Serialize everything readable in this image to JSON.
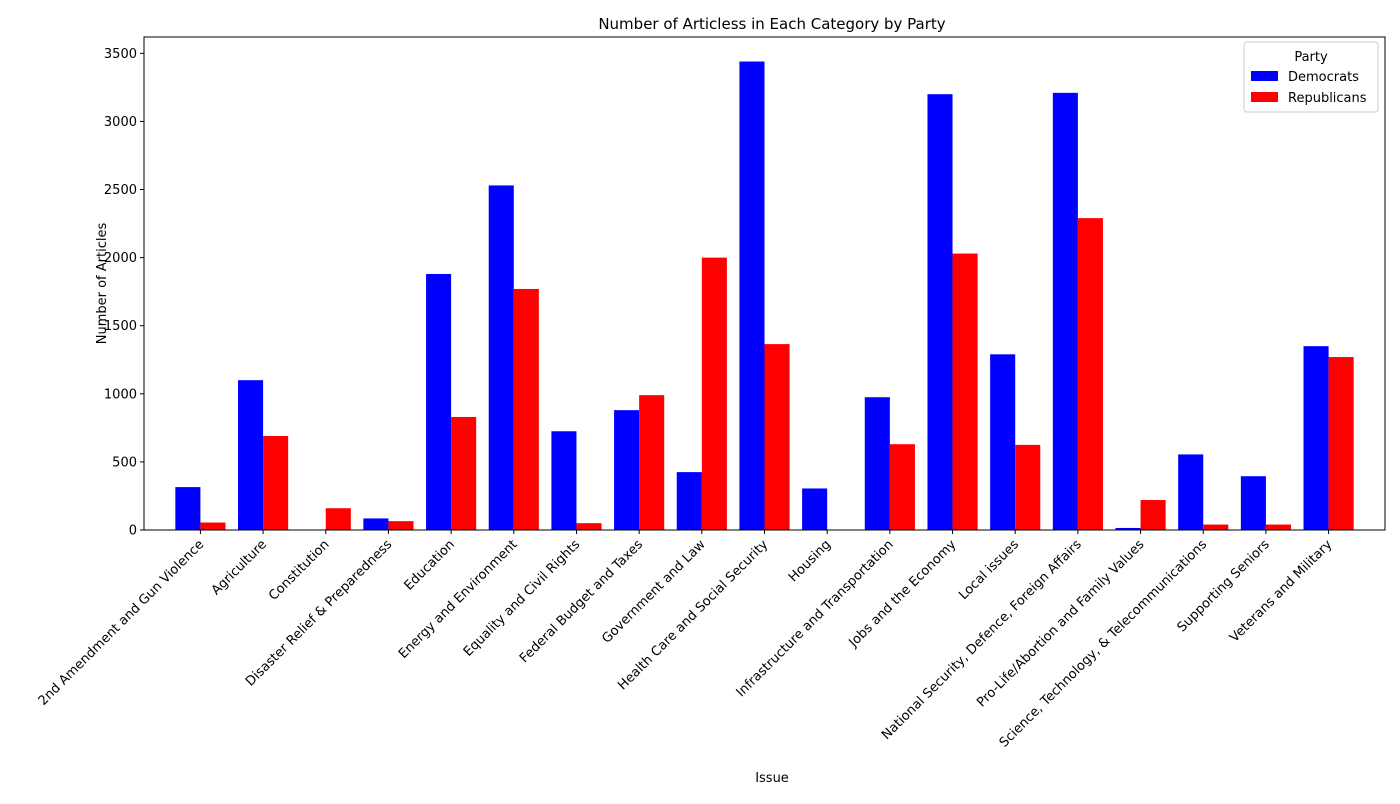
{
  "chart_data": {
    "type": "bar",
    "title": "Number of Articless in Each Category by Party",
    "xlabel": "Issue",
    "ylabel": "Number of Articles",
    "ylim": [
      0,
      3620
    ],
    "yticks": [
      0,
      500,
      1000,
      1500,
      2000,
      2500,
      3000,
      3500
    ],
    "grid": false,
    "legend": {
      "title": "Party",
      "placement": "top-right"
    },
    "categories": [
      "2nd Amendment and Gun Violence",
      "Agriculture",
      "Constitution",
      "Disaster Relief & Preparedness",
      "Education",
      "Energy and Environment",
      "Equality and Civil Rights",
      "Federal Budget and Taxes",
      "Government and Law",
      "Health Care and Social Security",
      "Housing",
      "Infrastructure and Transportation",
      "Jobs and the Economy",
      "Local issues",
      "National Security, Defence, Foreign Affairs",
      "Pro-Life/Abortion and Family Values",
      "Science, Technology, & Telecommunications",
      "Supporting Seniors",
      "Veterans and Military"
    ],
    "series": [
      {
        "name": "Democrats",
        "color": "#0000ff",
        "values": [
          315,
          1100,
          0,
          85,
          1880,
          2530,
          725,
          880,
          425,
          3440,
          305,
          975,
          3200,
          1290,
          3210,
          15,
          555,
          395,
          1350
        ]
      },
      {
        "name": "Republicans",
        "color": "#ff0000",
        "values": [
          55,
          690,
          160,
          65,
          830,
          1770,
          50,
          990,
          2000,
          1365,
          0,
          630,
          2030,
          625,
          2290,
          220,
          40,
          40,
          1270
        ]
      }
    ]
  }
}
